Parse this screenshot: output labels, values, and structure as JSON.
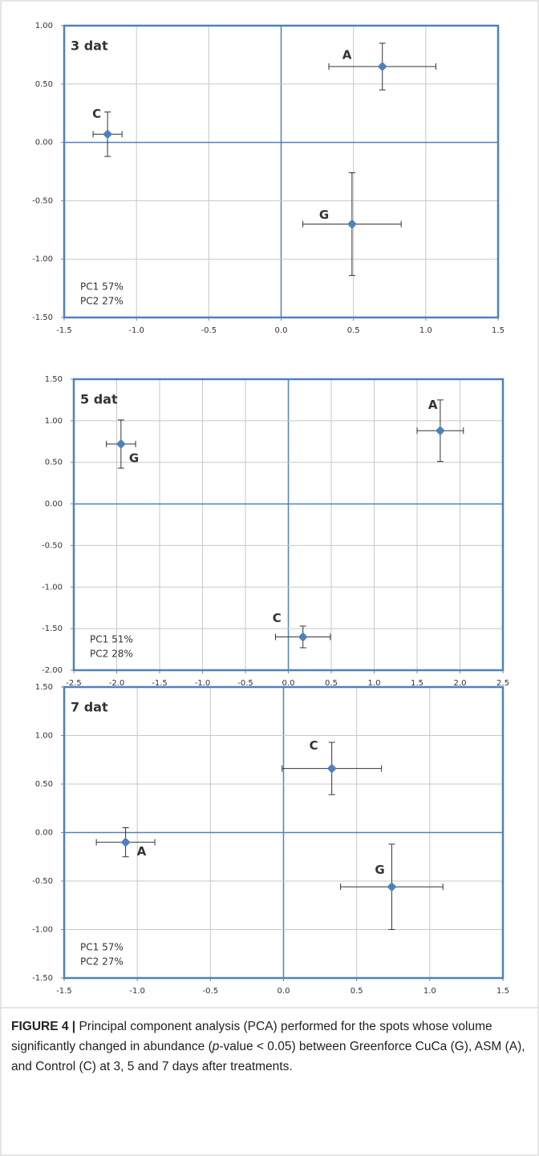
{
  "chart_data": [
    {
      "type": "scatter",
      "title": "3 dat",
      "annotations": [
        "PC1 57%",
        "PC2 27%"
      ],
      "color": "#4f81bd",
      "grid": true,
      "point_labels": [
        "A",
        "C",
        "G"
      ],
      "x": [
        0.7,
        -1.2,
        0.49
      ],
      "values": [
        0.65,
        0.07,
        -0.7
      ],
      "x_errors": [
        0.37,
        0.1,
        0.34
      ],
      "y_errors": [
        0.2,
        0.19,
        0.44
      ],
      "xlim": [
        -1.5,
        1.5
      ],
      "ylim": [
        -1.5,
        1.0
      ],
      "xticks": [
        -1.5,
        {
          "value": -1,
          "label": "-1.0"
        },
        -0.5,
        {
          "value": 0,
          "label": "0.0"
        },
        0.5,
        {
          "value": 1,
          "label": "1.0"
        },
        1.5
      ],
      "yticks": [
        {
          "value": -1.5,
          "label": "-1.50"
        },
        {
          "value": -1,
          "label": "-1.00"
        },
        {
          "value": -0.5,
          "label": "-0.50"
        },
        {
          "value": 0,
          "label": "0.00"
        },
        {
          "value": 0.5,
          "label": "0.50"
        },
        {
          "value": 1,
          "label": "1.00"
        }
      ]
    },
    {
      "type": "scatter",
      "title": "5 dat",
      "annotations": [
        "PC1 51%",
        "PC2 28%"
      ],
      "color": "#4f81bd",
      "grid": true,
      "point_labels": [
        "A",
        "G",
        "C"
      ],
      "x": [
        1.77,
        -1.95,
        0.17
      ],
      "values": [
        0.88,
        0.72,
        -1.6
      ],
      "x_errors": [
        0.27,
        0.17,
        0.32
      ],
      "y_errors": [
        0.37,
        0.29,
        0.13
      ],
      "xlim": [
        -2.5,
        2.5
      ],
      "ylim": [
        -2.0,
        1.5
      ],
      "xticks": [
        -2.5,
        {
          "value": -2,
          "label": "-2.0"
        },
        -1.5,
        {
          "value": -1,
          "label": "-1.0"
        },
        -0.5,
        {
          "value": 0,
          "label": "0.0"
        },
        0.5,
        {
          "value": 1,
          "label": "1.0"
        },
        1.5,
        {
          "value": 2,
          "label": "2.0"
        },
        2.5
      ],
      "yticks": [
        {
          "value": -2,
          "label": "-2.00"
        },
        {
          "value": -1.5,
          "label": "-1.50"
        },
        {
          "value": -1,
          "label": "-1.00"
        },
        {
          "value": -0.5,
          "label": "-0.50"
        },
        {
          "value": 0,
          "label": "0.00"
        },
        {
          "value": 0.5,
          "label": "0.50"
        },
        {
          "value": 1,
          "label": "1.00"
        },
        {
          "value": 1.5,
          "label": "1.50"
        }
      ]
    },
    {
      "type": "scatter",
      "title": "7 dat",
      "annotations": [
        "PC1 57%",
        "PC2 27%"
      ],
      "color": "#4f81bd",
      "grid": true,
      "point_labels": [
        "C",
        "A",
        "G"
      ],
      "x": [
        0.33,
        -1.08,
        0.74
      ],
      "values": [
        0.66,
        -0.1,
        -0.56
      ],
      "x_errors": [
        0.34,
        0.2,
        0.35
      ],
      "y_errors": [
        0.27,
        0.15,
        0.44
      ],
      "xlim": [
        -1.5,
        1.5
      ],
      "ylim": [
        -1.5,
        1.5
      ],
      "xticks": [
        -1.5,
        {
          "value": -1,
          "label": "-1.0"
        },
        -0.5,
        {
          "value": 0,
          "label": "0.0"
        },
        0.5,
        {
          "value": 1,
          "label": "1.0"
        },
        1.5
      ],
      "yticks": [
        {
          "value": -1.5,
          "label": "-1.50"
        },
        {
          "value": -1,
          "label": "-1.00"
        },
        {
          "value": -0.5,
          "label": "-0.50"
        },
        {
          "value": 0,
          "label": "0.00"
        },
        {
          "value": 0.5,
          "label": "0.50"
        },
        {
          "value": 1,
          "label": "1.00"
        },
        {
          "value": 1.5,
          "label": "1.50"
        }
      ]
    }
  ],
  "caption": {
    "label": "FIGURE 4 |",
    "parts": [
      "Principal component analysis (PCA) performed for the spots whose volume significantly changed in abundance (",
      "p",
      "-value < 0.05) between Greenforce CuCa (G), ASM (A), and Control (C) at 3, 5 and 7 days after treatments."
    ]
  }
}
